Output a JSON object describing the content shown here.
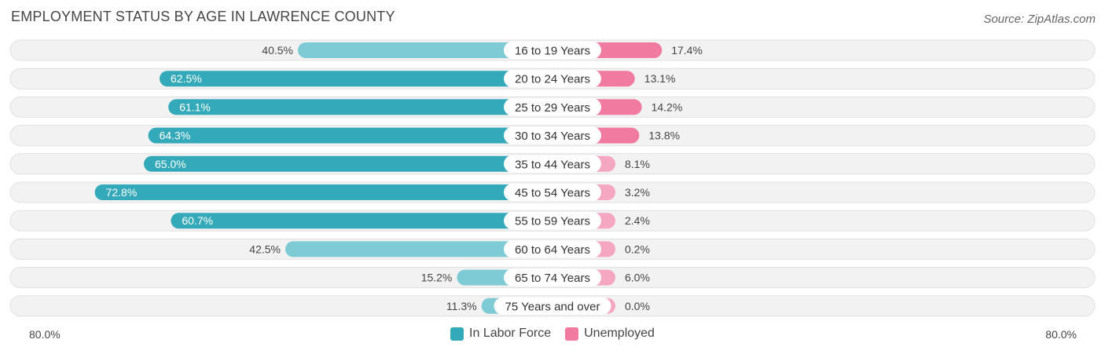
{
  "header": {
    "title": "EMPLOYMENT STATUS BY AGE IN LAWRENCE COUNTY",
    "source": "Source: ZipAtlas.com"
  },
  "axis": {
    "left_label": "80.0%",
    "right_label": "80.0%"
  },
  "legend": {
    "in_labor_force": "In Labor Force",
    "unemployed": "Unemployed"
  },
  "colors": {
    "labor_strong": "#34a9ba",
    "labor_light": "#7ecbd6",
    "unemp_strong": "#f07aa0",
    "unemp_light": "#f5a6c0",
    "row_bg": "#f2f2f2",
    "row_border": "#e0e0e0"
  },
  "chart_data": {
    "type": "bar",
    "orientation": "horizontal-diverging",
    "title": "EMPLOYMENT STATUS BY AGE IN LAWRENCE COUNTY",
    "xlim": [
      -80,
      80
    ],
    "categories": [
      "16 to 19 Years",
      "20 to 24 Years",
      "25 to 29 Years",
      "30 to 34 Years",
      "35 to 44 Years",
      "45 to 54 Years",
      "55 to 59 Years",
      "60 to 64 Years",
      "65 to 74 Years",
      "75 Years and over"
    ],
    "series": [
      {
        "name": "In Labor Force",
        "side": "left",
        "values": [
          40.5,
          62.5,
          61.1,
          64.3,
          65.0,
          72.8,
          60.7,
          42.5,
          15.2,
          11.3
        ],
        "labels": [
          "40.5%",
          "62.5%",
          "61.1%",
          "64.3%",
          "65.0%",
          "72.8%",
          "60.7%",
          "42.5%",
          "15.2%",
          "11.3%"
        ]
      },
      {
        "name": "Unemployed",
        "side": "right",
        "values": [
          17.4,
          13.1,
          14.2,
          13.8,
          8.1,
          3.2,
          2.4,
          0.2,
          6.0,
          0.0
        ],
        "labels": [
          "17.4%",
          "13.1%",
          "14.2%",
          "13.8%",
          "8.1%",
          "3.2%",
          "2.4%",
          "0.2%",
          "6.0%",
          "0.0%"
        ]
      }
    ]
  }
}
